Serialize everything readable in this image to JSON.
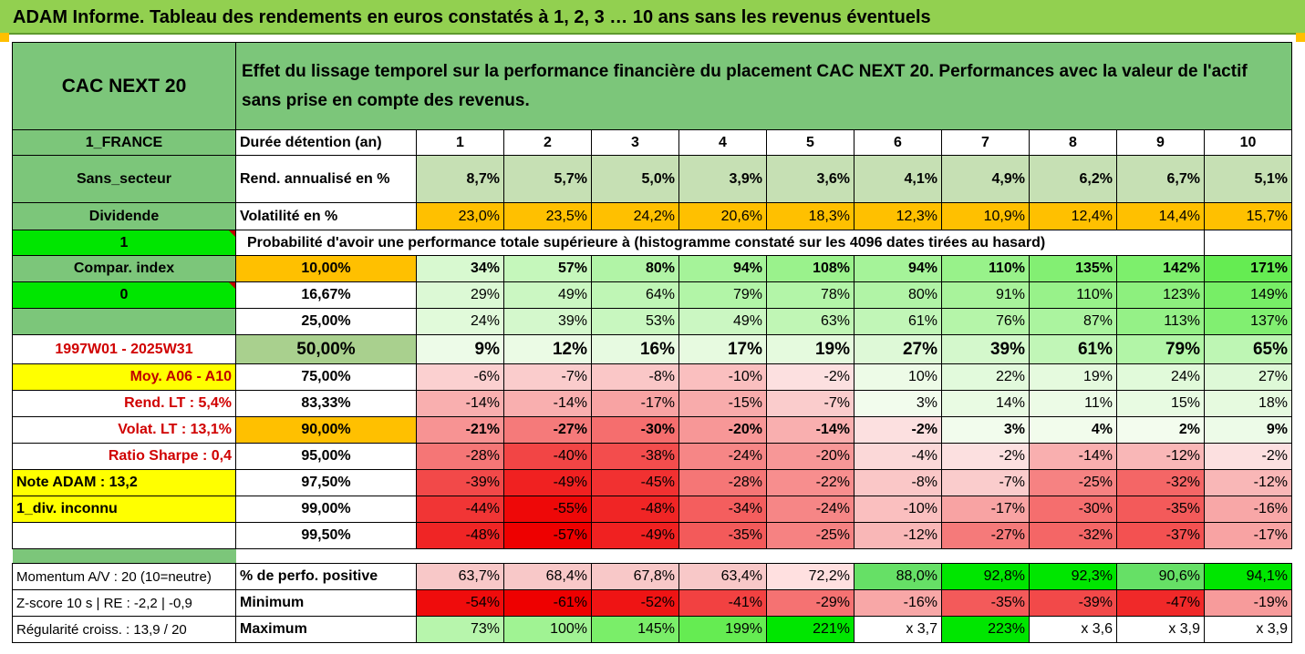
{
  "title": "ADAM Informe. Tableau des rendements en euros constatés à 1, 2, 3 … 10 ans sans les revenus éventuels",
  "header": {
    "asset": "CAC NEXT 20",
    "description": "Effet du lissage temporel sur la performance financière du placement CAC NEXT 20. Performances avec la valeur de l'actif sans prise en compte des revenus."
  },
  "left_panel": {
    "country": "1_FRANCE",
    "sector": "Sans_secteur",
    "dividend_label": "Dividende",
    "dividend_value": "1",
    "compar_label": "Compar. index",
    "compar_value": "0",
    "period": "1997W01 - 2025W31",
    "moy": "Moy. A06 - A10",
    "rend_lt": "Rend. LT :   5,4%",
    "volat_lt": "Volat. LT :   13,1%",
    "sharpe": "Ratio Sharpe :   0,4",
    "note": "Note ADAM : 13,2",
    "div": "1_div. inconnu",
    "momentum": "Momentum A/V : 20 (10=neutre)",
    "zscore": "Z-score 10 s  | RE : -2,2 | -0,9",
    "regularite": "Régularité croiss. : 13,9 / 20"
  },
  "duration_label": "Durée détention (an)",
  "years": [
    "1",
    "2",
    "3",
    "4",
    "5",
    "6",
    "7",
    "8",
    "9",
    "10"
  ],
  "rend_label": "Rend. annualisé en %",
  "rend": [
    "8,7%",
    "5,7%",
    "5,0%",
    "3,9%",
    "3,6%",
    "4,1%",
    "4,9%",
    "6,2%",
    "6,7%",
    "5,1%"
  ],
  "vol_label": "Volatilité en %",
  "vol": [
    "23,0%",
    "23,5%",
    "24,2%",
    "20,6%",
    "18,3%",
    "12,3%",
    "10,9%",
    "12,4%",
    "14,4%",
    "15,7%"
  ],
  "prob_title": "Probabilité d'avoir une performance totale supérieure à (histogramme constaté sur les 4096 dates tirées au hasard)",
  "prob_rows": [
    {
      "p": "10,00%",
      "v": [
        "34%",
        "57%",
        "80%",
        "94%",
        "108%",
        "94%",
        "110%",
        "135%",
        "142%",
        "171%"
      ]
    },
    {
      "p": "16,67%",
      "v": [
        "29%",
        "49%",
        "64%",
        "79%",
        "78%",
        "80%",
        "91%",
        "110%",
        "123%",
        "149%"
      ]
    },
    {
      "p": "25,00%",
      "v": [
        "24%",
        "39%",
        "53%",
        "49%",
        "63%",
        "61%",
        "76%",
        "87%",
        "113%",
        "137%"
      ]
    },
    {
      "p": "50,00%",
      "v": [
        "9%",
        "12%",
        "16%",
        "17%",
        "19%",
        "27%",
        "39%",
        "61%",
        "79%",
        "65%"
      ]
    },
    {
      "p": "75,00%",
      "v": [
        "-6%",
        "-7%",
        "-8%",
        "-10%",
        "-2%",
        "10%",
        "22%",
        "19%",
        "24%",
        "27%"
      ]
    },
    {
      "p": "83,33%",
      "v": [
        "-14%",
        "-14%",
        "-17%",
        "-15%",
        "-7%",
        "3%",
        "14%",
        "11%",
        "15%",
        "18%"
      ]
    },
    {
      "p": "90,00%",
      "v": [
        "-21%",
        "-27%",
        "-30%",
        "-20%",
        "-14%",
        "-2%",
        "3%",
        "4%",
        "2%",
        "9%"
      ]
    },
    {
      "p": "95,00%",
      "v": [
        "-28%",
        "-40%",
        "-38%",
        "-24%",
        "-20%",
        "-4%",
        "-2%",
        "-14%",
        "-12%",
        "-2%"
      ]
    },
    {
      "p": "97,50%",
      "v": [
        "-39%",
        "-49%",
        "-45%",
        "-28%",
        "-22%",
        "-8%",
        "-7%",
        "-25%",
        "-32%",
        "-12%"
      ]
    },
    {
      "p": "99,00%",
      "v": [
        "-44%",
        "-55%",
        "-48%",
        "-34%",
        "-24%",
        "-10%",
        "-17%",
        "-30%",
        "-35%",
        "-16%"
      ]
    },
    {
      "p": "99,50%",
      "v": [
        "-48%",
        "-57%",
        "-49%",
        "-35%",
        "-25%",
        "-12%",
        "-27%",
        "-32%",
        "-37%",
        "-17%"
      ]
    }
  ],
  "pos_label": "% de perfo. positive",
  "pos": [
    "63,7%",
    "68,4%",
    "67,8%",
    "63,4%",
    "72,2%",
    "88,0%",
    "92,8%",
    "92,3%",
    "90,6%",
    "94,1%"
  ],
  "min_label": "Minimum",
  "min": [
    "-54%",
    "-61%",
    "-52%",
    "-41%",
    "-29%",
    "-16%",
    "-35%",
    "-39%",
    "-47%",
    "-19%"
  ],
  "max_label": "Maximum",
  "max": [
    "73%",
    "100%",
    "145%",
    "199%",
    "221%",
    "x 3,7",
    "223%",
    "x 3,6",
    "x 3,9",
    "x 3,9"
  ],
  "colors": {
    "header_green": "#7cc67a",
    "title_green": "#92d050",
    "rend_green": "#c6e0b4",
    "vol_orange": "#ffc000",
    "highlight_yellow": "#ffff00",
    "bright_green": "#00e600",
    "strong_red": "#ff0000"
  }
}
